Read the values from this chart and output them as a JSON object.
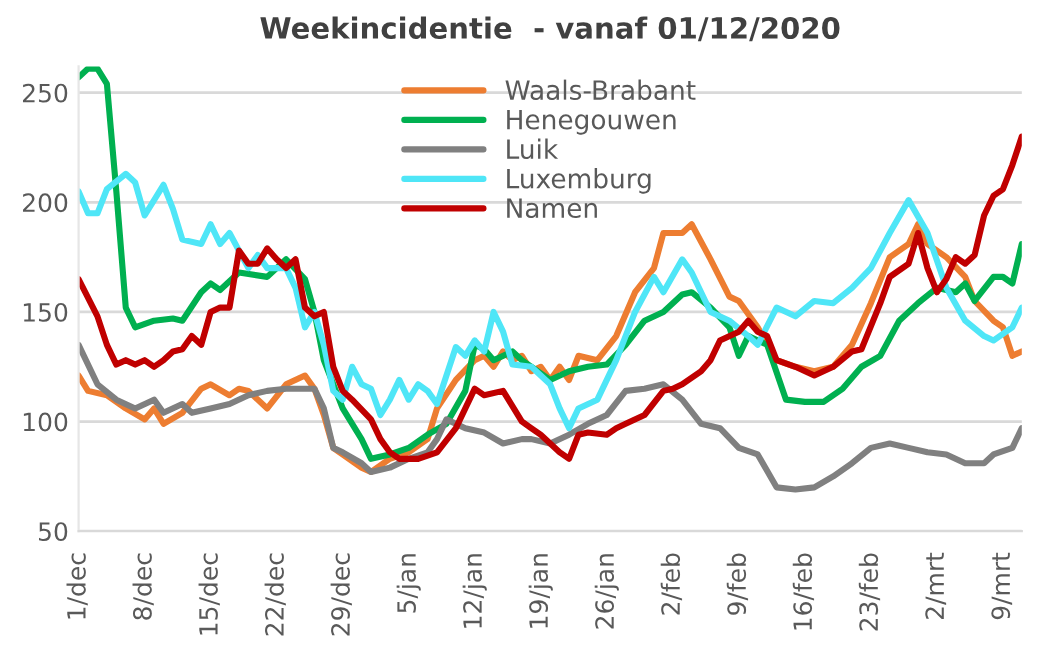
{
  "chart_data": {
    "type": "line",
    "title": "Weekincidentie  - vanaf 01/12/2020",
    "xlim": [
      "2020-12-01",
      "2021-03-11"
    ],
    "ylim": [
      50,
      262
    ],
    "yticks": [
      50,
      100,
      150,
      200,
      250
    ],
    "xticks": [
      {
        "value": "2020-12-01",
        "label": "1/dec"
      },
      {
        "value": "2020-12-08",
        "label": "8/dec"
      },
      {
        "value": "2020-12-15",
        "label": "15/dec"
      },
      {
        "value": "2020-12-22",
        "label": "22/dec"
      },
      {
        "value": "2020-12-29",
        "label": "29/dec"
      },
      {
        "value": "2021-01-05",
        "label": "5/jan"
      },
      {
        "value": "2021-01-12",
        "label": "12/jan"
      },
      {
        "value": "2021-01-19",
        "label": "19/jan"
      },
      {
        "value": "2021-01-26",
        "label": "26/jan"
      },
      {
        "value": "2021-02-02",
        "label": "2/feb"
      },
      {
        "value": "2021-02-09",
        "label": "9/feb"
      },
      {
        "value": "2021-02-16",
        "label": "16/feb"
      },
      {
        "value": "2021-02-23",
        "label": "23/feb"
      },
      {
        "value": "2021-03-02",
        "label": "2/mrt"
      },
      {
        "value": "2021-03-09",
        "label": "9/mrt"
      }
    ],
    "grid": "y",
    "legend": "top",
    "marker": "none",
    "line_style": "solid",
    "series": [
      {
        "name": "Waals-Brabant",
        "color": "#ed7d31",
        "x": [
          "2020-12-01",
          "2020-12-02",
          "2020-12-04",
          "2020-12-06",
          "2020-12-08",
          "2020-12-09",
          "2020-12-10",
          "2020-12-12",
          "2020-12-14",
          "2020-12-15",
          "2020-12-17",
          "2020-12-18",
          "2020-12-19",
          "2020-12-21",
          "2020-12-23",
          "2020-12-25",
          "2020-12-26",
          "2020-12-27",
          "2020-12-28",
          "2020-12-29",
          "2020-12-31",
          "2021-01-01",
          "2021-01-03",
          "2021-01-05",
          "2021-01-07",
          "2021-01-08",
          "2021-01-10",
          "2021-01-12",
          "2021-01-13",
          "2021-01-14",
          "2021-01-15",
          "2021-01-16",
          "2021-01-17",
          "2021-01-18",
          "2021-01-19",
          "2021-01-20",
          "2021-01-21",
          "2021-01-22",
          "2021-01-23",
          "2021-01-25",
          "2021-01-27",
          "2021-01-29",
          "2021-01-31",
          "2021-02-01",
          "2021-02-03",
          "2021-02-04",
          "2021-02-06",
          "2021-02-08",
          "2021-02-09",
          "2021-02-11",
          "2021-02-13",
          "2021-02-15",
          "2021-02-17",
          "2021-02-19",
          "2021-02-21",
          "2021-02-23",
          "2021-02-25",
          "2021-02-27",
          "2021-02-28",
          "2021-03-01",
          "2021-03-03",
          "2021-03-05",
          "2021-03-06",
          "2021-03-08",
          "2021-03-09",
          "2021-03-10",
          "2021-03-11"
        ],
        "values": [
          121,
          114,
          112,
          106,
          101,
          106,
          99,
          104,
          115,
          117,
          112,
          115,
          114,
          106,
          117,
          121,
          115,
          103,
          88,
          85,
          79,
          77,
          83,
          86,
          92,
          106,
          119,
          128,
          130,
          125,
          132,
          128,
          130,
          123,
          125,
          119,
          125,
          119,
          130,
          128,
          139,
          159,
          170,
          186,
          186,
          190,
          174,
          157,
          155,
          143,
          128,
          125,
          123,
          125,
          135,
          154,
          175,
          181,
          190,
          181,
          175,
          166,
          155,
          146,
          143,
          130,
          132
        ]
      },
      {
        "name": "Henegouwen",
        "color": "#00b050",
        "x": [
          "2020-12-01",
          "2020-12-02",
          "2020-12-03",
          "2020-12-04",
          "2020-12-05",
          "2020-12-06",
          "2020-12-07",
          "2020-12-09",
          "2020-12-11",
          "2020-12-12",
          "2020-12-14",
          "2020-12-15",
          "2020-12-16",
          "2020-12-18",
          "2020-12-21",
          "2020-12-23",
          "2020-12-25",
          "2020-12-26",
          "2020-12-27",
          "2020-12-29",
          "2020-12-31",
          "2021-01-01",
          "2021-01-03",
          "2021-01-05",
          "2021-01-07",
          "2021-01-09",
          "2021-01-11",
          "2021-01-12",
          "2021-01-13",
          "2021-01-14",
          "2021-01-16",
          "2021-01-17",
          "2021-01-18",
          "2021-01-20",
          "2021-01-22",
          "2021-01-24",
          "2021-01-26",
          "2021-01-28",
          "2021-01-30",
          "2021-02-01",
          "2021-02-03",
          "2021-02-04",
          "2021-02-06",
          "2021-02-08",
          "2021-02-09",
          "2021-02-10",
          "2021-02-12",
          "2021-02-14",
          "2021-02-16",
          "2021-02-18",
          "2021-02-20",
          "2021-02-22",
          "2021-02-24",
          "2021-02-26",
          "2021-02-28",
          "2021-03-02",
          "2021-03-04",
          "2021-03-05",
          "2021-03-06",
          "2021-03-08",
          "2021-03-09",
          "2021-03-10",
          "2021-03-11"
        ],
        "values": [
          257,
          261,
          261,
          254,
          205,
          152,
          143,
          146,
          147,
          146,
          159,
          163,
          160,
          168,
          166,
          174,
          165,
          150,
          128,
          106,
          92,
          83,
          85,
          88,
          94,
          99,
          114,
          135,
          133,
          128,
          132,
          128,
          125,
          119,
          123,
          125,
          126,
          135,
          146,
          150,
          158,
          159,
          152,
          143,
          130,
          139,
          135,
          110,
          109,
          109,
          115,
          125,
          130,
          146,
          154,
          161,
          159,
          163,
          155,
          166,
          166,
          163,
          181
        ]
      },
      {
        "name": "Luik",
        "color": "#808080",
        "x": [
          "2020-12-01",
          "2020-12-03",
          "2020-12-05",
          "2020-12-07",
          "2020-12-09",
          "2020-12-10",
          "2020-12-12",
          "2020-12-13",
          "2020-12-15",
          "2020-12-17",
          "2020-12-19",
          "2020-12-21",
          "2020-12-23",
          "2020-12-26",
          "2020-12-27",
          "2020-12-28",
          "2020-12-29",
          "2020-12-31",
          "2021-01-01",
          "2021-01-03",
          "2021-01-05",
          "2021-01-07",
          "2021-01-08",
          "2021-01-09",
          "2021-01-11",
          "2021-01-13",
          "2021-01-15",
          "2021-01-17",
          "2021-01-18",
          "2021-01-20",
          "2021-01-22",
          "2021-01-24",
          "2021-01-26",
          "2021-01-28",
          "2021-01-30",
          "2021-02-01",
          "2021-02-03",
          "2021-02-05",
          "2021-02-07",
          "2021-02-09",
          "2021-02-11",
          "2021-02-13",
          "2021-02-15",
          "2021-02-17",
          "2021-02-19",
          "2021-02-21",
          "2021-02-23",
          "2021-02-25",
          "2021-02-27",
          "2021-03-01",
          "2021-03-03",
          "2021-03-05",
          "2021-03-07",
          "2021-03-08",
          "2021-03-10",
          "2021-03-11"
        ],
        "values": [
          135,
          117,
          110,
          106,
          110,
          104,
          108,
          104,
          106,
          108,
          112,
          114,
          115,
          115,
          106,
          88,
          86,
          81,
          77,
          79,
          83,
          86,
          92,
          101,
          97,
          95,
          90,
          92,
          92,
          90,
          94,
          99,
          103,
          114,
          115,
          117,
          110,
          99,
          97,
          88,
          85,
          70,
          69,
          70,
          75,
          81,
          88,
          90,
          88,
          86,
          85,
          81,
          81,
          85,
          88,
          97
        ]
      },
      {
        "name": "Luxemburg",
        "color": "#4fe6f7",
        "x": [
          "2020-12-01",
          "2020-12-02",
          "2020-12-03",
          "2020-12-04",
          "2020-12-06",
          "2020-12-07",
          "2020-12-08",
          "2020-12-10",
          "2020-12-11",
          "2020-12-12",
          "2020-12-14",
          "2020-12-15",
          "2020-12-16",
          "2020-12-17",
          "2020-12-19",
          "2020-12-20",
          "2020-12-21",
          "2020-12-23",
          "2020-12-24",
          "2020-12-25",
          "2020-12-26",
          "2020-12-27",
          "2020-12-28",
          "2020-12-29",
          "2020-12-30",
          "2020-12-31",
          "2021-01-01",
          "2021-01-02",
          "2021-01-03",
          "2021-01-04",
          "2021-01-05",
          "2021-01-06",
          "2021-01-07",
          "2021-01-08",
          "2021-01-10",
          "2021-01-11",
          "2021-01-12",
          "2021-01-13",
          "2021-01-14",
          "2021-01-15",
          "2021-01-16",
          "2021-01-18",
          "2021-01-20",
          "2021-01-21",
          "2021-01-22",
          "2021-01-23",
          "2021-01-25",
          "2021-01-27",
          "2021-01-29",
          "2021-01-31",
          "2021-02-01",
          "2021-02-03",
          "2021-02-04",
          "2021-02-06",
          "2021-02-08",
          "2021-02-10",
          "2021-02-11",
          "2021-02-13",
          "2021-02-15",
          "2021-02-17",
          "2021-02-19",
          "2021-02-21",
          "2021-02-23",
          "2021-02-25",
          "2021-02-27",
          "2021-03-01",
          "2021-03-03",
          "2021-03-05",
          "2021-03-07",
          "2021-03-08",
          "2021-03-10",
          "2021-03-11"
        ],
        "values": [
          205,
          195,
          195,
          206,
          213,
          209,
          194,
          208,
          197,
          183,
          181,
          190,
          181,
          186,
          170,
          176,
          170,
          170,
          161,
          143,
          150,
          135,
          114,
          110,
          125,
          117,
          115,
          103,
          110,
          119,
          110,
          117,
          114,
          108,
          134,
          130,
          137,
          132,
          150,
          141,
          126,
          125,
          117,
          106,
          97,
          106,
          110,
          128,
          150,
          166,
          159,
          174,
          168,
          150,
          146,
          139,
          135,
          152,
          148,
          155,
          154,
          161,
          170,
          186,
          201,
          186,
          161,
          146,
          139,
          137,
          143,
          152
        ]
      },
      {
        "name": "Namen",
        "color": "#c00000",
        "x": [
          "2020-12-01",
          "2020-12-03",
          "2020-12-04",
          "2020-12-05",
          "2020-12-06",
          "2020-12-07",
          "2020-12-08",
          "2020-12-09",
          "2020-12-10",
          "2020-12-11",
          "2020-12-12",
          "2020-12-13",
          "2020-12-14",
          "2020-12-15",
          "2020-12-16",
          "2020-12-17",
          "2020-12-18",
          "2020-12-19",
          "2020-12-20",
          "2020-12-21",
          "2020-12-22",
          "2020-12-23",
          "2020-12-24",
          "2020-12-25",
          "2020-12-26",
          "2020-12-27",
          "2020-12-28",
          "2020-12-29",
          "2020-12-30",
          "2021-01-01",
          "2021-01-02",
          "2021-01-03",
          "2021-01-04",
          "2021-01-06",
          "2021-01-08",
          "2021-01-10",
          "2021-01-11",
          "2021-01-12",
          "2021-01-13",
          "2021-01-15",
          "2021-01-17",
          "2021-01-18",
          "2021-01-19",
          "2021-01-20",
          "2021-01-21",
          "2021-01-22",
          "2021-01-23",
          "2021-01-24",
          "2021-01-26",
          "2021-01-27",
          "2021-01-28",
          "2021-01-30",
          "2021-02-01",
          "2021-02-02",
          "2021-02-03",
          "2021-02-05",
          "2021-02-06",
          "2021-02-07",
          "2021-02-09",
          "2021-02-10",
          "2021-02-11",
          "2021-02-12",
          "2021-02-13",
          "2021-02-15",
          "2021-02-17",
          "2021-02-19",
          "2021-02-21",
          "2021-02-22",
          "2021-02-24",
          "2021-02-25",
          "2021-02-27",
          "2021-02-28",
          "2021-03-01",
          "2021-03-02",
          "2021-03-03",
          "2021-03-04",
          "2021-03-05",
          "2021-03-06",
          "2021-03-07",
          "2021-03-08",
          "2021-03-09",
          "2021-03-10",
          "2021-03-11"
        ],
        "values": [
          165,
          148,
          135,
          126,
          128,
          126,
          128,
          125,
          128,
          132,
          133,
          139,
          135,
          150,
          152,
          152,
          178,
          172,
          172,
          179,
          174,
          170,
          174,
          152,
          148,
          150,
          125,
          114,
          110,
          101,
          92,
          86,
          83,
          83,
          86,
          97,
          106,
          115,
          112,
          114,
          100,
          97,
          94,
          90,
          86,
          83,
          94,
          95,
          94,
          97,
          99,
          103,
          114,
          115,
          117,
          123,
          128,
          137,
          141,
          146,
          141,
          139,
          128,
          125,
          121,
          125,
          132,
          133,
          154,
          166,
          172,
          186,
          170,
          159,
          165,
          175,
          172,
          176,
          194,
          203,
          206,
          217,
          230
        ]
      }
    ]
  }
}
